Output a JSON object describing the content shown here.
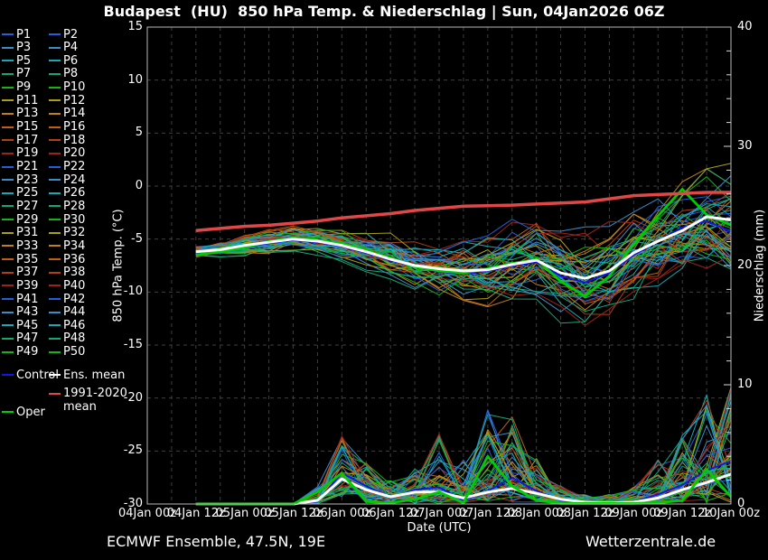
{
  "title": "Budapest  (HU)  850 hPa Temp. & Niederschlag | Sun, 04Jan2026 06Z",
  "footer": {
    "left": "ECMWF Ensemble, 47.5N, 19E",
    "right": "Wetterzentrale.de"
  },
  "colors": {
    "background": "#000000",
    "text": "#ffffff",
    "grid": "#3f3f3f",
    "frame": "#b8b8b8",
    "ens_mean": "#ffffff",
    "oper": "#00cc00",
    "control": "#1414e6",
    "clim_mean": "#e04848",
    "member_color_cycle": [
      "#2160d8",
      "#3c8cc8",
      "#18aab4",
      "#14a878",
      "#16b416",
      "#aaa014",
      "#c08214",
      "#c05f14",
      "#b04018",
      "#9c2418"
    ]
  },
  "legend": {
    "member_labels": [
      "P1",
      "P2",
      "P3",
      "P4",
      "P5",
      "P6",
      "P7",
      "P8",
      "P9",
      "P10",
      "P11",
      "P12",
      "P13",
      "P14",
      "P15",
      "P16",
      "P17",
      "P18",
      "P19",
      "P20",
      "P21",
      "P22",
      "P23",
      "P24",
      "P25",
      "P26",
      "P27",
      "P28",
      "P29",
      "P30",
      "P31",
      "P32",
      "P33",
      "P34",
      "P35",
      "P36",
      "P37",
      "P38",
      "P39",
      "P40",
      "P41",
      "P42",
      "P43",
      "P44",
      "P45",
      "P46",
      "P47",
      "P48",
      "P49",
      "P50"
    ],
    "control_label": "Control",
    "ens_mean_label": "Ens. mean",
    "clim_label_line1": "1991-2020",
    "clim_label_line2": "mean",
    "oper_label": "Oper"
  },
  "chart_data": {
    "type": "line",
    "title": "Budapest  (HU)  850 hPa Temp. & Niederschlag | Sun, 04Jan2026 06Z",
    "xlabel": "Date (UTC)",
    "x_range_hours": [
      0,
      144
    ],
    "x_tick_labels": [
      "04Jan 00z",
      "04Jan 12z",
      "05Jan 00z",
      "05Jan 12z",
      "06Jan 00z",
      "06Jan 12z",
      "07Jan 00z",
      "07Jan 12z",
      "08Jan 00z",
      "08Jan 12z",
      "09Jan 00z",
      "09Jan 12z",
      "10Jan 00z"
    ],
    "grid": "dashed, vertical every 6h, horizontal every 5degC",
    "legend_position": "outside-left",
    "n_members": 50,
    "y_left": {
      "label": "850 hPa Temp. (°C)",
      "min": -30,
      "max": 15,
      "ticks": [
        15,
        10,
        5,
        0,
        -5,
        -10,
        -15,
        -20,
        -25,
        -30
      ]
    },
    "y_right": {
      "label": "Niederschlag (mm)",
      "min": 0,
      "max": 40,
      "ticks": [
        0,
        10,
        20,
        30,
        40
      ],
      "minor_tick_step": 2
    },
    "hours": [
      12,
      18,
      24,
      30,
      36,
      42,
      48,
      54,
      60,
      66,
      72,
      78,
      84,
      90,
      96,
      102,
      108,
      114,
      120,
      126,
      132,
      138,
      144
    ],
    "series": {
      "ens_mean_temp": [
        -6.2,
        -6.0,
        -5.6,
        -5.3,
        -5.0,
        -5.2,
        -5.6,
        -6.2,
        -6.9,
        -7.5,
        -7.8,
        -8.0,
        -7.9,
        -7.4,
        -7.0,
        -8.2,
        -8.7,
        -8.0,
        -6.3,
        -5.2,
        -4.2,
        -2.9,
        -3.2
      ],
      "oper_temp": [
        -6.5,
        -6.2,
        -5.8,
        -5.2,
        -4.9,
        -5.1,
        -5.4,
        -6.1,
        -6.8,
        -7.6,
        -8.0,
        -8.2,
        -7.8,
        -7.3,
        -6.9,
        -9.0,
        -10.4,
        -8.5,
        -5.5,
        -2.8,
        -0.3,
        -2.7,
        -3.7
      ],
      "control_temp": [
        -6.4,
        -6.1,
        -5.7,
        -5.4,
        -5.1,
        -5.3,
        -5.7,
        -6.3,
        -7.0,
        -7.6,
        -8.1,
        -8.3,
        -8.0,
        -7.5,
        -7.2,
        -8.5,
        -9.1,
        -8.2,
        -6.5,
        -5.2,
        -3.9,
        -3.3,
        -4.3
      ],
      "clim_mean_temp": [
        -4.2,
        -4.0,
        -3.8,
        -3.7,
        -3.5,
        -3.3,
        -3.0,
        -2.8,
        -2.6,
        -2.3,
        -2.1,
        -1.9,
        -1.85,
        -1.8,
        -1.7,
        -1.6,
        -1.5,
        -1.2,
        -0.9,
        -0.8,
        -0.7,
        -0.6,
        -0.6
      ],
      "temp_env_min": [
        -7.2,
        -7.3,
        -7.3,
        -6.8,
        -6.6,
        -7.0,
        -7.4,
        -8.2,
        -9.7,
        -10.0,
        -10.5,
        -10.8,
        -11.4,
        -12.6,
        -12.4,
        -13.0,
        -13.6,
        -13.2,
        -13.4,
        -12.4,
        -11.6,
        -11.0,
        -11.2
      ],
      "temp_env_max": [
        -5.5,
        -5.3,
        -4.6,
        -4.0,
        -3.6,
        -3.8,
        -3.9,
        -4.2,
        -4.3,
        -4.6,
        -4.4,
        -2.4,
        -3.0,
        -3.0,
        -3.4,
        -3.8,
        -3.8,
        -3.2,
        -2.4,
        -0.5,
        0.5,
        1.8,
        2.3
      ],
      "ens_mean_precip": [
        0,
        0,
        0,
        0,
        0,
        0.3,
        2.1,
        1.2,
        0.6,
        1.0,
        1.0,
        0.5,
        1.0,
        1.3,
        0.9,
        0.4,
        0.15,
        0.1,
        0.15,
        0.5,
        1.2,
        1.8,
        2.5
      ],
      "oper_precip": [
        0,
        0,
        0,
        0,
        0,
        1.0,
        2.6,
        0.2,
        0.1,
        0.4,
        1.0,
        0.1,
        4.0,
        1.5,
        0.3,
        0.05,
        0.05,
        0.05,
        0.05,
        0.1,
        0.3,
        2.9,
        0.6
      ],
      "control_precip": [
        0,
        0,
        0,
        0,
        0,
        0.2,
        2.6,
        1.5,
        0.5,
        1.2,
        1.4,
        0.3,
        1.1,
        2.2,
        1.1,
        0.3,
        0.1,
        0.1,
        0.2,
        0.8,
        1.6,
        2.8,
        3.6
      ],
      "precip_env_max": [
        0,
        0,
        0,
        0,
        0,
        1.5,
        5.8,
        3.5,
        2.0,
        3.0,
        6.0,
        4.0,
        8.0,
        8.0,
        4.5,
        1.5,
        0.8,
        0.8,
        1.5,
        4.0,
        7.0,
        9.3,
        10.3
      ]
    }
  }
}
